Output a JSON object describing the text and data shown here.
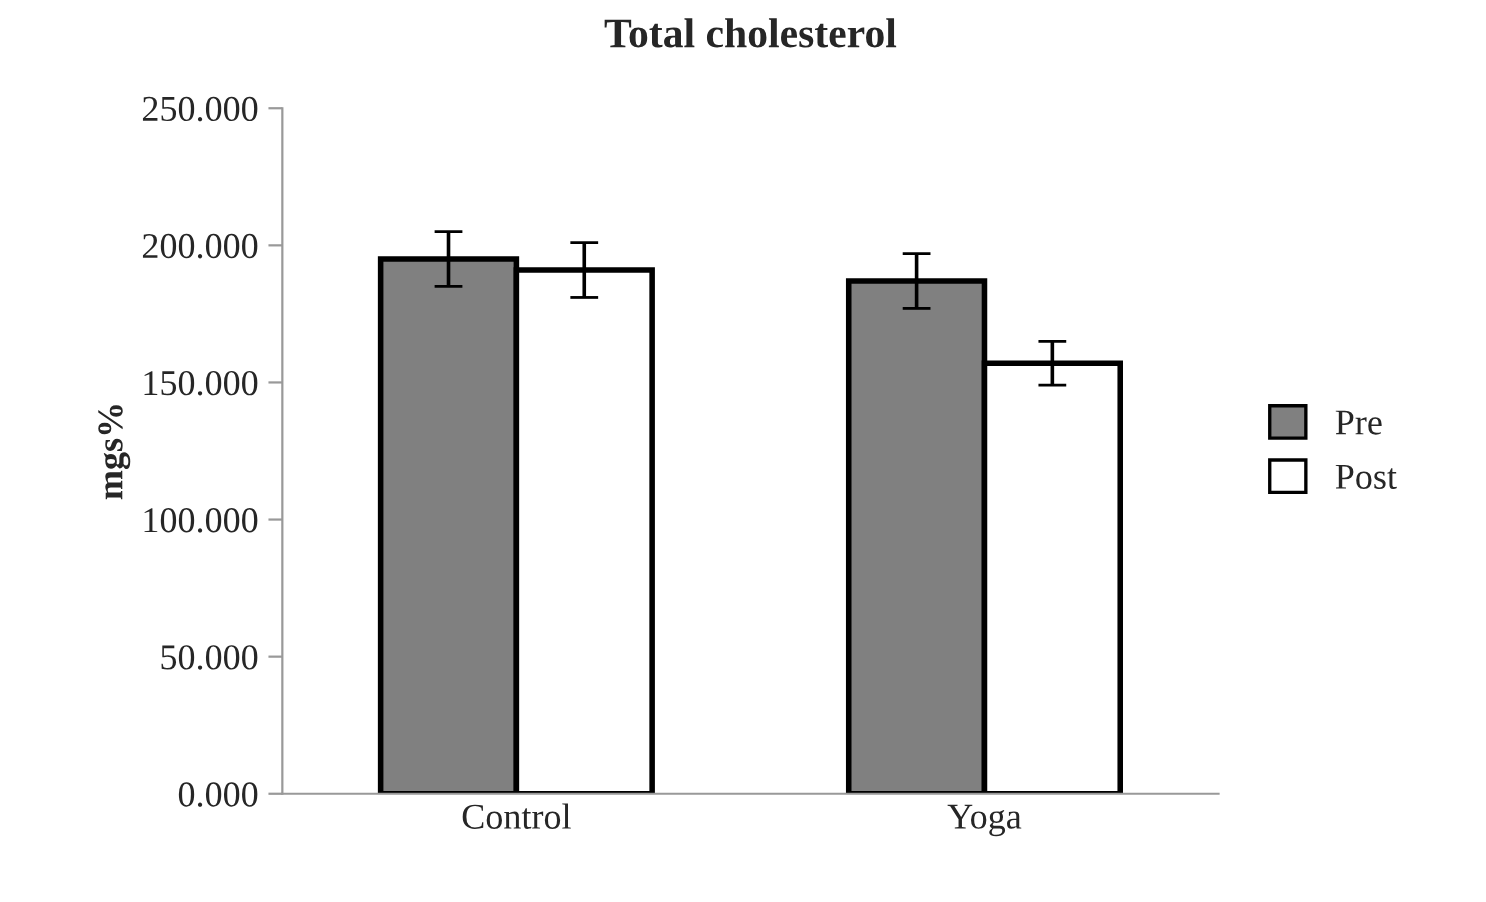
{
  "chart_data": {
    "type": "bar",
    "title": "Total cholesterol",
    "ylabel": "mgs%",
    "categories": [
      "Control",
      "Yoga"
    ],
    "series": [
      {
        "name": "Pre",
        "color": "#808080",
        "values": [
          195,
          187
        ],
        "errors": [
          10,
          10
        ]
      },
      {
        "name": "Post",
        "color": "#ffffff",
        "values": [
          191,
          157
        ],
        "errors": [
          10,
          8
        ]
      }
    ],
    "ylim": [
      0,
      250
    ],
    "yticks": [
      {
        "value": 0,
        "label": "0.000"
      },
      {
        "value": 50,
        "label": "50.000"
      },
      {
        "value": 100,
        "label": "100.000"
      },
      {
        "value": 150,
        "label": "150.000"
      },
      {
        "value": 200,
        "label": "200.000"
      },
      {
        "value": 250,
        "label": "250.000"
      }
    ],
    "legend": "right",
    "grid": false
  }
}
